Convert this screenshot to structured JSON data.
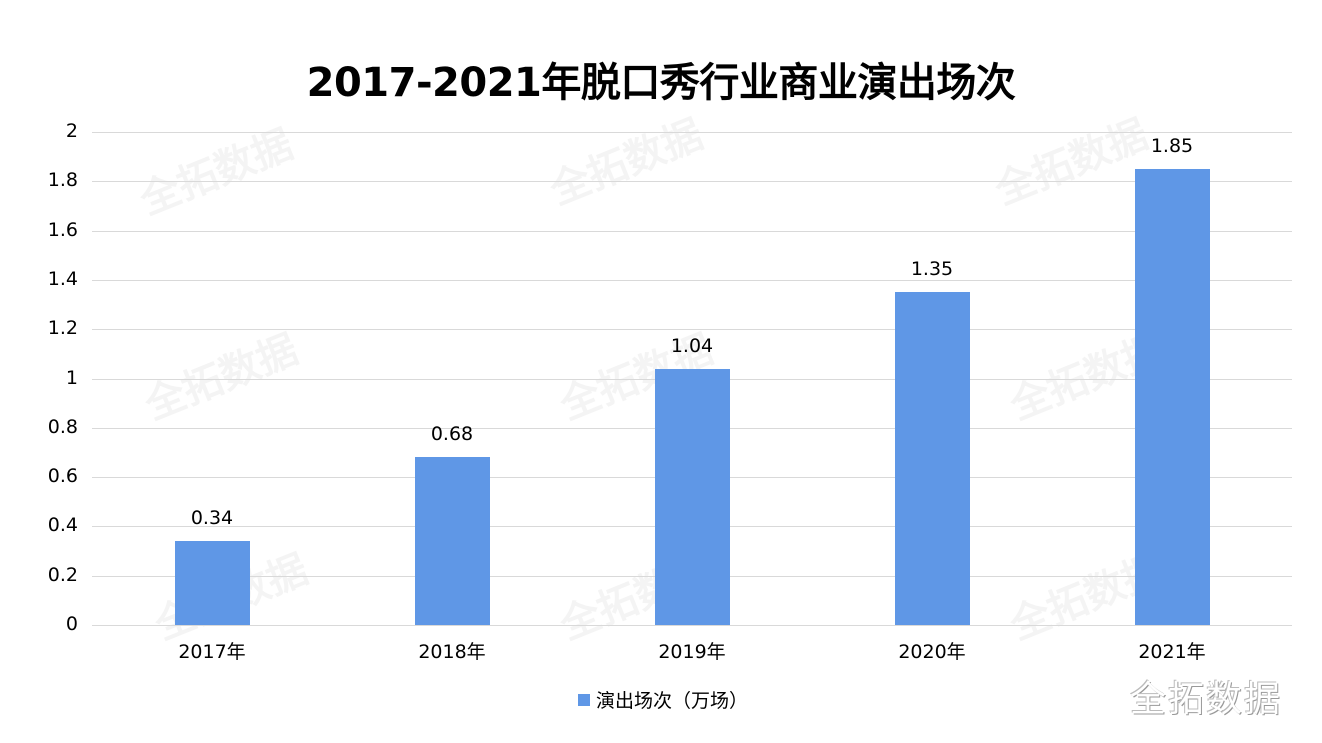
{
  "chart_data": {
    "type": "bar",
    "title": "2017-2021年脱口秀行业商业演出场次",
    "categories": [
      "2017年",
      "2018年",
      "2019年",
      "2020年",
      "2021年"
    ],
    "series": [
      {
        "name": "演出场次（万场）",
        "values": [
          0.34,
          0.68,
          1.04,
          1.35,
          1.85
        ],
        "color": "#5f97e6"
      }
    ],
    "data_labels": [
      "0.34",
      "0.68",
      "1.04",
      "1.35",
      "1.85"
    ],
    "xlabel": "",
    "ylabel": "",
    "ylim": [
      0,
      2
    ],
    "yticks": [
      "0",
      "0.2",
      "0.4",
      "0.6",
      "0.8",
      "1",
      "1.2",
      "1.4",
      "1.6",
      "1.8",
      "2"
    ],
    "grid": true,
    "legend_position": "bottom"
  },
  "watermark": "全拓数据",
  "brand": "全拓数据"
}
